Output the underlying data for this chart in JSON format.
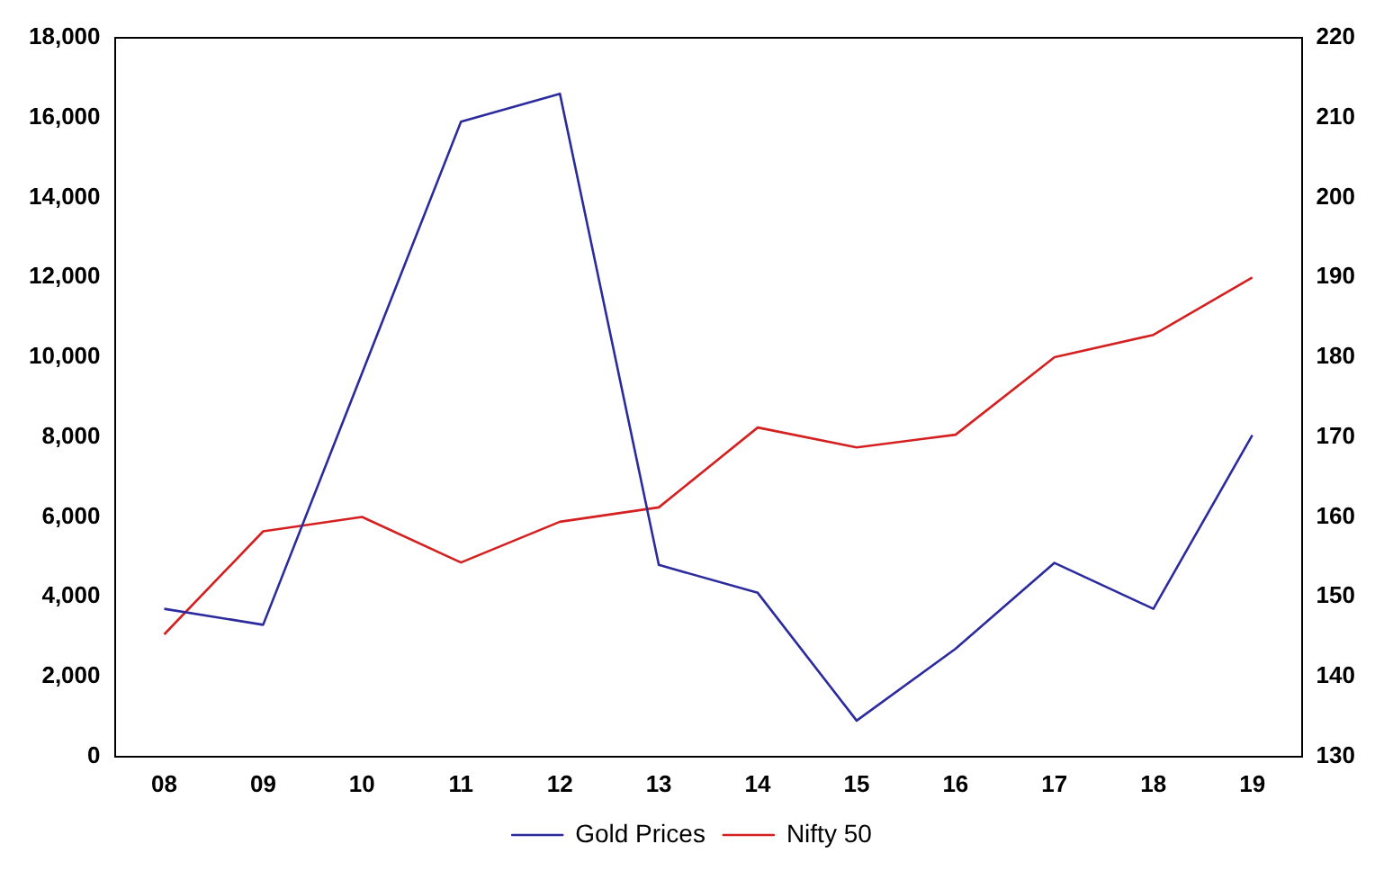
{
  "chart_data": {
    "type": "line",
    "categories": [
      "08",
      "09",
      "10",
      "11",
      "12",
      "13",
      "14",
      "15",
      "16",
      "17",
      "18",
      "19"
    ],
    "series": [
      {
        "name": "Gold Prices",
        "color": "#2b2b9e",
        "values": [
          3700,
          3300,
          9600,
          15900,
          16600,
          4800,
          4100,
          900,
          2700,
          4850,
          3700,
          8050
        ]
      },
      {
        "name": "Nifty 50",
        "color": "#d42020",
        "axis": "y2",
        "values": [
          145.3,
          158.2,
          160,
          154.3,
          159.4,
          161.2,
          171.2,
          168.7,
          170.3,
          180,
          182.8,
          190
        ]
      }
    ],
    "ylim": [
      0,
      18000
    ],
    "yticks": [
      {
        "value": 0,
        "label": "0"
      },
      {
        "value": 2000,
        "label": "2,000"
      },
      {
        "value": 4000,
        "label": "4,000"
      },
      {
        "value": 6000,
        "label": "6,000"
      },
      {
        "value": 8000,
        "label": "8,000"
      },
      {
        "value": 10000,
        "label": "10,000"
      },
      {
        "value": 12000,
        "label": "12,000"
      },
      {
        "value": 14000,
        "label": "14,000"
      },
      {
        "value": 16000,
        "label": "16,000"
      },
      {
        "value": 18000,
        "label": "18,000"
      }
    ],
    "y2lim": [
      130,
      220
    ],
    "y2ticks": [
      130,
      140,
      150,
      160,
      170,
      180,
      190,
      200,
      210,
      220
    ],
    "grid": false,
    "legend": "bottom",
    "marker": "none",
    "line_style": "solid"
  }
}
